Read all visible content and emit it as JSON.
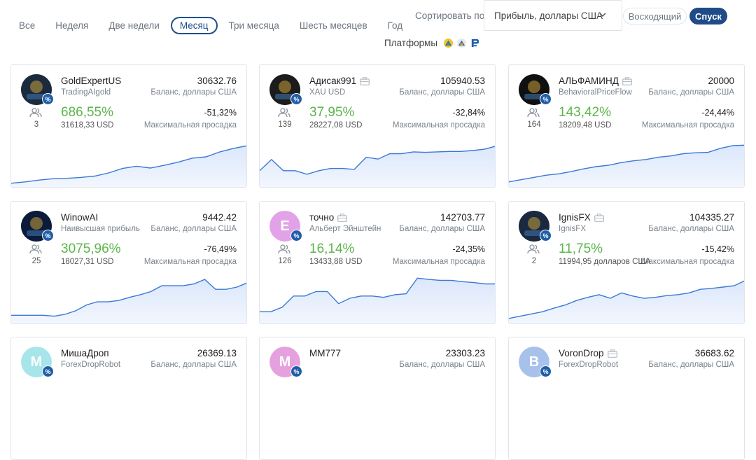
{
  "periods": [
    "Все",
    "Неделя",
    "Две недели",
    "Месяц",
    "Три месяца",
    "Шесть месяцев",
    "Год"
  ],
  "active_period": "Месяц",
  "sort": {
    "label": "Сортировать по",
    "selected": "Прибыль, доллары США",
    "asc_label": "Восходящий",
    "desc_label": "Спуск"
  },
  "platforms": {
    "label": "Платформы",
    "icons": [
      "metatrader4-icon",
      "metatrader5-icon",
      "ctrader-icon"
    ]
  },
  "colors": {
    "accent": "#1f4b86",
    "profit": "#5cb54c",
    "chart_line": "#3b78d4",
    "chart_fill": "#dbe7fb",
    "chart_negative": "#e9775f"
  },
  "cards": [
    {
      "name": "GoldExpertUS",
      "strategy": "TradingAIgold",
      "balance": "30632.76",
      "balance_label": "Баланс, доллары США",
      "subscribers": "3",
      "profit": "686,55%",
      "equity": "31618,33 USD",
      "drawdown": "-51,32%",
      "drawdown_label": "Максимальная просадка",
      "avatar": {
        "type": "image",
        "text": "XAU USD",
        "bg": "#1b2a3d"
      },
      "has_case_icon": false,
      "sparkline": [
        0.02,
        0.05,
        0.09,
        0.12,
        0.13,
        0.15,
        0.18,
        0.25,
        0.35,
        0.4,
        0.36,
        0.42,
        0.49,
        0.58,
        0.61,
        0.72,
        0.8,
        0.86
      ]
    },
    {
      "name": "Адисак991",
      "strategy": "XAU USD",
      "balance": "105940.53",
      "balance_label": "Баланс, доллары США",
      "subscribers": "139",
      "profit": "37,95%",
      "equity": "28227,08 USD",
      "drawdown": "-32,84%",
      "drawdown_label": "Максимальная просадка",
      "avatar": {
        "type": "image",
        "text": "GOLD",
        "bg": "#1c1c1c"
      },
      "has_case_icon": true,
      "sparkline": [
        0.3,
        0.55,
        0.3,
        0.3,
        0.22,
        0.3,
        0.35,
        0.35,
        0.33,
        0.6,
        0.56,
        0.68,
        0.68,
        0.72,
        0.71,
        0.72,
        0.73,
        0.73,
        0.75,
        0.78,
        0.85
      ]
    },
    {
      "name": "АЛЬФАМИНД",
      "strategy": "BehavioralPriceFlow",
      "balance": "20000",
      "balance_label": "Баланс, доллары США",
      "subscribers": "164",
      "profit": "143,42%",
      "equity": "18209,48 USD",
      "drawdown": "-24,44%",
      "drawdown_label": "Максимальная просадка",
      "avatar": {
        "type": "image",
        "text": "AM",
        "bg": "#101010"
      },
      "has_case_icon": true,
      "sparkline": [
        0.05,
        0.1,
        0.15,
        0.2,
        0.23,
        0.28,
        0.34,
        0.39,
        0.42,
        0.48,
        0.52,
        0.55,
        0.6,
        0.63,
        0.68,
        0.7,
        0.71,
        0.8,
        0.86,
        0.87
      ]
    },
    {
      "name": "WinowAI",
      "strategy": "Наивысшая прибыль",
      "balance": "9442.42",
      "balance_label": "Баланс, доллары США",
      "subscribers": "25",
      "profit": "3075,96%",
      "equity": "18027,31 USD",
      "drawdown": "-76,49%",
      "drawdown_label": "Максимальная просадка",
      "avatar": {
        "type": "image",
        "text": "AI",
        "bg": "#0d1b3a"
      },
      "has_case_icon": false,
      "sparkline": [
        0.12,
        0.12,
        0.12,
        0.12,
        0.1,
        0.14,
        0.22,
        0.35,
        0.42,
        0.42,
        0.45,
        0.52,
        0.58,
        0.65,
        0.78,
        0.78,
        0.78,
        0.82,
        0.92,
        0.7,
        0.7,
        0.75,
        0.85
      ]
    },
    {
      "name": "точно",
      "strategy": "Альберт Эйнштейн",
      "balance": "142703.77",
      "balance_label": "Баланс, доллары США",
      "subscribers": "126",
      "profit": "16,14%",
      "equity": "13433,88 USD",
      "drawdown": "-24,35%",
      "drawdown_label": "Максимальная просадка",
      "avatar": {
        "type": "letter",
        "text": "E",
        "bg": "#e2a2e8"
      },
      "has_case_icon": true,
      "sparkline": [
        0.2,
        0.2,
        0.3,
        0.55,
        0.55,
        0.65,
        0.65,
        0.38,
        0.5,
        0.55,
        0.55,
        0.52,
        0.58,
        0.6,
        0.95,
        0.92,
        0.9,
        0.9,
        0.87,
        0.85,
        0.82,
        0.82
      ]
    },
    {
      "name": "IgnisFX",
      "strategy": "IgnisFX",
      "balance": "104335.27",
      "balance_label": "Баланс, доллары США",
      "subscribers": "2",
      "profit": "11,75%",
      "equity": "11994,95 долларов США",
      "drawdown": "-15,42%",
      "drawdown_label": "Максимальная просадка",
      "avatar": {
        "type": "image",
        "text": "IF",
        "bg": "#1a2940"
      },
      "has_case_icon": true,
      "sparkline": [
        0.05,
        0.1,
        0.15,
        0.2,
        0.28,
        0.35,
        0.45,
        0.52,
        0.58,
        0.5,
        0.62,
        0.55,
        0.5,
        0.52,
        0.56,
        0.58,
        0.62,
        0.7,
        0.72,
        0.75,
        0.78,
        0.9
      ]
    },
    {
      "name": "МишаДроп",
      "strategy": "ForexDropRobot",
      "balance": "26369.13",
      "balance_label": "Баланс, доллары США",
      "avatar": {
        "type": "letter",
        "text": "M",
        "bg": "#a6e5e9"
      },
      "has_case_icon": false
    },
    {
      "name": "MM777",
      "strategy": "",
      "balance": "23303.23",
      "balance_label": "Баланс, доллары США",
      "avatar": {
        "type": "letter",
        "text": "M",
        "bg": "#e5a1dd"
      },
      "has_case_icon": false
    },
    {
      "name": "VoronDrop",
      "strategy": "ForexDropRobot",
      "balance": "36683.62",
      "balance_label": "Баланс, доллары США",
      "avatar": {
        "type": "letter",
        "text": "В",
        "bg": "#a7c1ea"
      },
      "has_case_icon": true
    }
  ]
}
